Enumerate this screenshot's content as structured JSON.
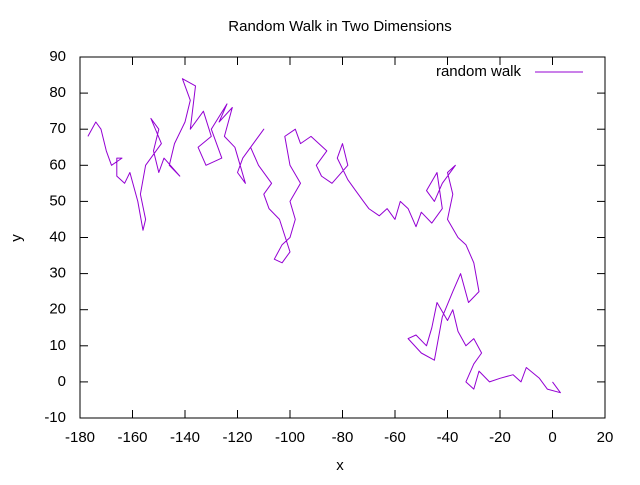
{
  "chart_data": {
    "type": "line",
    "title": "Random Walk in Two Dimensions",
    "xlabel": "x",
    "ylabel": "y",
    "xlim": [
      -180,
      20
    ],
    "ylim": [
      -10,
      90
    ],
    "xticks": [
      -180,
      -160,
      -140,
      -120,
      -100,
      -80,
      -60,
      -40,
      -20,
      0,
      20
    ],
    "yticks": [
      -10,
      0,
      10,
      20,
      30,
      40,
      50,
      60,
      70,
      80,
      90
    ],
    "legend": "top-right",
    "series": [
      {
        "name": "random walk",
        "color": "#9400d3",
        "x": [
          0,
          3,
          -2,
          -5,
          -10,
          -12,
          -15,
          -20,
          -24,
          -28,
          -30,
          -33,
          -30,
          -27,
          -30,
          -33,
          -36,
          -38,
          -40,
          -44,
          -46,
          -48,
          -52,
          -55,
          -50,
          -45,
          -42,
          -38,
          -35,
          -32,
          -28,
          -30,
          -33,
          -36,
          -40,
          -38,
          -40,
          -37,
          -42,
          -45,
          -48,
          -44,
          -42,
          -46,
          -50,
          -52,
          -55,
          -58,
          -60,
          -63,
          -66,
          -70,
          -72,
          -75,
          -78,
          -82,
          -80,
          -78,
          -84,
          -88,
          -90,
          -86,
          -92,
          -96,
          -98,
          -102,
          -100,
          -96,
          -100,
          -98,
          -100,
          -103,
          -106,
          -103,
          -100,
          -104,
          -108,
          -110,
          -107,
          -112,
          -115,
          -110,
          -113,
          -118,
          -120,
          -117,
          -121,
          -125,
          -122,
          -127,
          -124,
          -130,
          -126,
          -132,
          -135,
          -130,
          -133,
          -138,
          -136,
          -141,
          -138,
          -140,
          -144,
          -146,
          -142,
          -148,
          -150,
          -152,
          -150,
          -153,
          -149,
          -155,
          -157,
          -155,
          -156,
          -158,
          -161,
          -163,
          -166,
          -166,
          -164,
          -168,
          -170,
          -172,
          -174,
          -177
        ],
        "values": [
          0,
          -3,
          -2,
          1,
          4,
          0,
          2,
          1,
          0,
          3,
          -2,
          0,
          5,
          8,
          12,
          10,
          14,
          20,
          17,
          22,
          15,
          10,
          13,
          12,
          8,
          6,
          18,
          25,
          30,
          22,
          25,
          33,
          38,
          40,
          45,
          52,
          58,
          60,
          55,
          50,
          53,
          58,
          48,
          44,
          47,
          43,
          48,
          50,
          45,
          48,
          46,
          48,
          50,
          53,
          56,
          62,
          66,
          60,
          55,
          57,
          60,
          64,
          68,
          66,
          70,
          68,
          60,
          55,
          50,
          45,
          40,
          38,
          34,
          33,
          36,
          45,
          48,
          52,
          55,
          60,
          65,
          70,
          67,
          62,
          58,
          55,
          65,
          68,
          76,
          72,
          77,
          70,
          62,
          60,
          65,
          68,
          75,
          70,
          82,
          84,
          78,
          72,
          66,
          60,
          57,
          62,
          58,
          64,
          70,
          73,
          66,
          60,
          52,
          45,
          42,
          50,
          58,
          55,
          57,
          62,
          62,
          60,
          64,
          70,
          72,
          68
        ]
      }
    ]
  }
}
